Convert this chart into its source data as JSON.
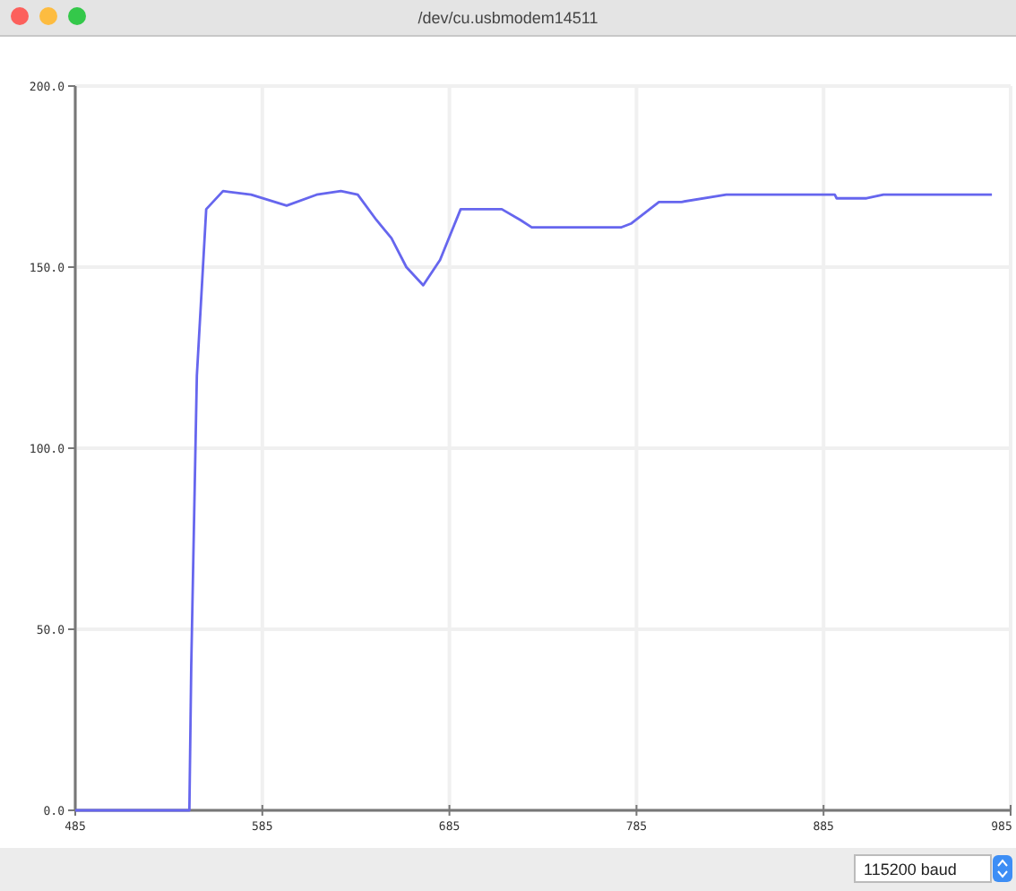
{
  "chart_data": {
    "type": "line",
    "title": "/dev/cu.usbmodem14511",
    "x": [
      485,
      546,
      547,
      550,
      555,
      564,
      579,
      598,
      614,
      627,
      636,
      646,
      654,
      662,
      671,
      680,
      691,
      713,
      723,
      729,
      745,
      777,
      782,
      797,
      809,
      833,
      891,
      892,
      908,
      917,
      975
    ],
    "series": [
      {
        "color": "#6666ee",
        "values": [
          0,
          0,
          40,
          120,
          166,
          171,
          170,
          167,
          170,
          171,
          170,
          163,
          158,
          150,
          145,
          152,
          166,
          166,
          163,
          161,
          161,
          161,
          162,
          168,
          168,
          170,
          170,
          169,
          169,
          170,
          170
        ]
      }
    ],
    "xlim": [
      485,
      985
    ],
    "xticks": [
      485,
      585,
      685,
      785,
      885,
      985
    ],
    "ylim": [
      0,
      200
    ],
    "yticks": [
      {
        "value": 0,
        "label": "0.0"
      },
      {
        "value": 50,
        "label": "50.0"
      },
      {
        "value": 100,
        "label": "100.0"
      },
      {
        "value": 150,
        "label": "150.0"
      },
      {
        "value": 200,
        "label": "200.0"
      }
    ],
    "grid": true,
    "marker": "none",
    "line_style": "solid",
    "annotations": [
      "115200 baud"
    ]
  }
}
